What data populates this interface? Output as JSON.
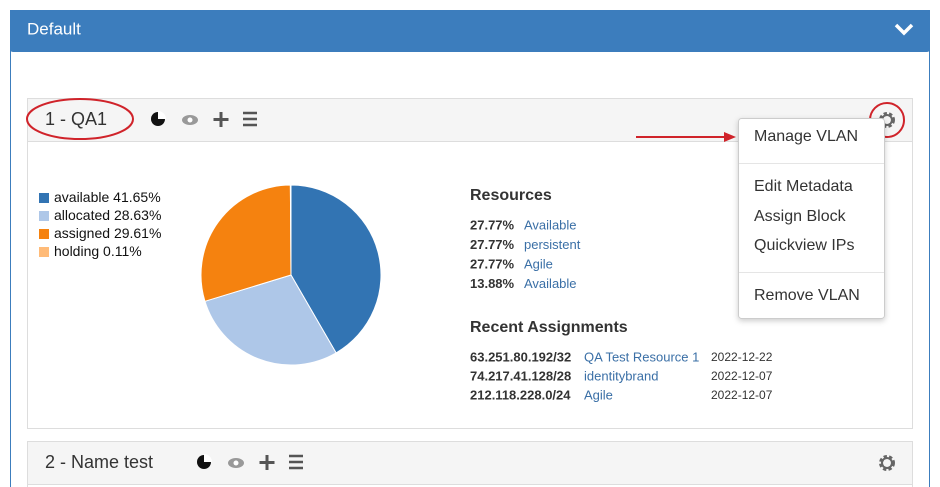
{
  "header": {
    "title": "Default"
  },
  "panels": [
    {
      "title": "1 - QA1",
      "menu": [
        "Manage VLAN",
        "Edit Metadata",
        "Assign Block",
        "Quickview IPs",
        "Remove VLAN"
      ],
      "pie": {
        "type": "pie",
        "categories": [
          "available",
          "allocated",
          "assigned",
          "holding"
        ],
        "values": [
          41.65,
          28.63,
          29.61,
          0.11
        ],
        "value_labels": [
          "41.65%",
          "28.63%",
          "29.61%",
          "0.11%"
        ],
        "colors": [
          "#3274b3",
          "#aec7e8",
          "#f5820f",
          "#ffbb78"
        ]
      },
      "resources": {
        "title": "Resources",
        "rows": [
          [
            "27.77%",
            "Available"
          ],
          [
            "27.77%",
            "persistent"
          ],
          [
            "27.77%",
            "Agile"
          ],
          [
            "13.88%",
            "Available"
          ]
        ]
      },
      "recent": {
        "title": "Recent Assignments",
        "rows": [
          [
            "63.251.80.192/32",
            "QA Test Resource 1",
            "2022-12-22"
          ],
          [
            "74.217.41.128/28",
            "identitybrand",
            "2022-12-07"
          ],
          [
            "212.118.228.0/24",
            "Agile",
            "2022-12-07"
          ]
        ]
      }
    },
    {
      "title": "2 - Name test"
    }
  ]
}
